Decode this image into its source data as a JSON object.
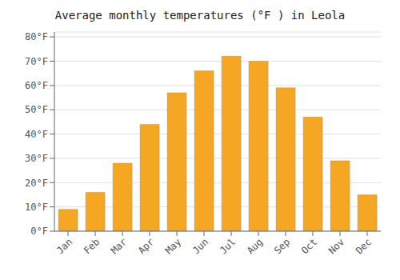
{
  "chart_data": {
    "type": "bar",
    "title": "Average monthly temperatures (°F ) in Leola",
    "categories": [
      "Jan",
      "Feb",
      "Mar",
      "Apr",
      "May",
      "Jun",
      "Jul",
      "Aug",
      "Sep",
      "Oct",
      "Nov",
      "Dec"
    ],
    "values": [
      9,
      16,
      28,
      44,
      57,
      66,
      72,
      70,
      59,
      47,
      29,
      15
    ],
    "color": "#F5A623",
    "ylim": [
      0,
      82
    ],
    "yticks": [
      {
        "value": 0,
        "label": "0°F"
      },
      {
        "value": 10,
        "label": "10°F"
      },
      {
        "value": 20,
        "label": "20°F"
      },
      {
        "value": 30,
        "label": "30°F"
      },
      {
        "value": 40,
        "label": "40°F"
      },
      {
        "value": 50,
        "label": "50°F"
      },
      {
        "value": 60,
        "label": "60°F"
      },
      {
        "value": 70,
        "label": "70°F"
      },
      {
        "value": 80,
        "label": "80°F"
      }
    ],
    "grid": true
  }
}
